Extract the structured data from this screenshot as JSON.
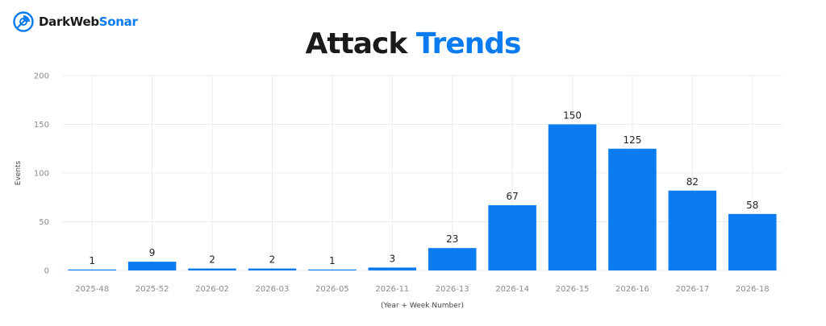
{
  "brand": {
    "name_part1": "DarkWeb",
    "name_part2": "Sonar"
  },
  "header": {
    "title_part1": "Attack",
    "title_part2": "Trends"
  },
  "colors": {
    "bar": "#0a7cf0",
    "grid": "#ececec",
    "accent": "#0a7cf0",
    "text": "#1a1a1a"
  },
  "chart_data": {
    "type": "bar",
    "categories": [
      "2025-48",
      "2025-52",
      "2026-02",
      "2026-03",
      "2026-05",
      "2026-11",
      "2026-13",
      "2026-14",
      "2026-15",
      "2026-16",
      "2026-17",
      "2026-18"
    ],
    "values": [
      1,
      9,
      2,
      2,
      1,
      3,
      23,
      67,
      150,
      125,
      82,
      58
    ],
    "title": "Attack Trends",
    "xlabel": "(Year + Week Number)",
    "ylabel": "Events",
    "ylim": [
      0,
      200
    ],
    "yticks": [
      0,
      50,
      100,
      150,
      200
    ],
    "grid": true,
    "data_labels": true
  }
}
